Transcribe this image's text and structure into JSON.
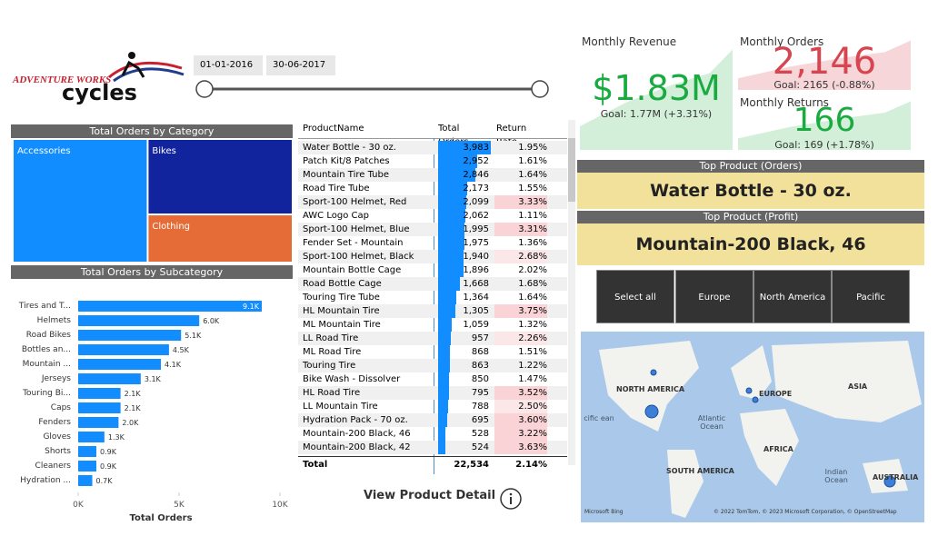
{
  "logo": {
    "line1": "ADVENTURE WORKS",
    "line2": "cycles"
  },
  "date_range": {
    "start": "01-01-2016",
    "end": "30-06-2017"
  },
  "category_treemap": {
    "title": "Total Orders by Category",
    "categories": [
      "Accessories",
      "Bikes",
      "Clothing"
    ],
    "values": [
      16000,
      10500,
      6700
    ],
    "colors": [
      "#118dff",
      "#12239e",
      "#e66c37"
    ]
  },
  "subcategory_chart": {
    "type": "bar",
    "title": "Total Orders by Subcategory",
    "x_label": "Total Orders",
    "color": "#118dff",
    "categories": [
      "Tires and T...",
      "Helmets",
      "Road Bikes",
      "Bottles an...",
      "Mountain ...",
      "Jerseys",
      "Touring Bi...",
      "Caps",
      "Fenders",
      "Gloves",
      "Shorts",
      "Cleaners",
      "Hydration ..."
    ],
    "values": [
      9100,
      6000,
      5100,
      4500,
      4100,
      3100,
      2100,
      2100,
      2000,
      1300,
      900,
      900,
      700
    ],
    "value_labels": [
      "9.1K",
      "6.0K",
      "5.1K",
      "4.5K",
      "4.1K",
      "3.1K",
      "2.1K",
      "2.1K",
      "2.0K",
      "1.3K",
      "0.9K",
      "0.9K",
      "0.7K"
    ],
    "xlim": [
      0,
      10000
    ],
    "xticks": [
      {
        "value": 0,
        "label": "0K"
      },
      {
        "value": 5000,
        "label": "5K"
      },
      {
        "value": 10000,
        "label": "10K"
      }
    ]
  },
  "product_table": {
    "columns": [
      "ProductName",
      "Total Orders",
      "Return Rate"
    ],
    "rows": [
      [
        "Water Bottle - 30 oz.",
        {
          "value": 3983,
          "label": "3,983"
        },
        {
          "value": 1.95,
          "label": "1.95%"
        }
      ],
      [
        "Patch Kit/8 Patches",
        {
          "value": 2952,
          "label": "2,952"
        },
        {
          "value": 1.61,
          "label": "1.61%"
        }
      ],
      [
        "Mountain Tire Tube",
        {
          "value": 2846,
          "label": "2,846"
        },
        {
          "value": 1.64,
          "label": "1.64%"
        }
      ],
      [
        "Road Tire Tube",
        {
          "value": 2173,
          "label": "2,173"
        },
        {
          "value": 1.55,
          "label": "1.55%"
        }
      ],
      [
        "Sport-100 Helmet, Red",
        {
          "value": 2099,
          "label": "2,099"
        },
        {
          "value": 3.33,
          "label": "3.33%"
        }
      ],
      [
        "AWC Logo Cap",
        {
          "value": 2062,
          "label": "2,062"
        },
        {
          "value": 1.11,
          "label": "1.11%"
        }
      ],
      [
        "Sport-100 Helmet, Blue",
        {
          "value": 1995,
          "label": "1,995"
        },
        {
          "value": 3.31,
          "label": "3.31%"
        }
      ],
      [
        "Fender Set - Mountain",
        {
          "value": 1975,
          "label": "1,975"
        },
        {
          "value": 1.36,
          "label": "1.36%"
        }
      ],
      [
        "Sport-100 Helmet, Black",
        {
          "value": 1940,
          "label": "1,940"
        },
        {
          "value": 2.68,
          "label": "2.68%"
        }
      ],
      [
        "Mountain Bottle Cage",
        {
          "value": 1896,
          "label": "1,896"
        },
        {
          "value": 2.02,
          "label": "2.02%"
        }
      ],
      [
        "Road Bottle Cage",
        {
          "value": 1668,
          "label": "1,668"
        },
        {
          "value": 1.68,
          "label": "1.68%"
        }
      ],
      [
        "Touring Tire Tube",
        {
          "value": 1364,
          "label": "1,364"
        },
        {
          "value": 1.64,
          "label": "1.64%"
        }
      ],
      [
        "HL Mountain Tire",
        {
          "value": 1305,
          "label": "1,305"
        },
        {
          "value": 3.75,
          "label": "3.75%"
        }
      ],
      [
        "ML Mountain Tire",
        {
          "value": 1059,
          "label": "1,059"
        },
        {
          "value": 1.32,
          "label": "1.32%"
        }
      ],
      [
        "LL Road Tire",
        {
          "value": 957,
          "label": "957"
        },
        {
          "value": 2.26,
          "label": "2.26%"
        }
      ],
      [
        "ML Road Tire",
        {
          "value": 868,
          "label": "868"
        },
        {
          "value": 1.51,
          "label": "1.51%"
        }
      ],
      [
        "Touring Tire",
        {
          "value": 863,
          "label": "863"
        },
        {
          "value": 1.22,
          "label": "1.22%"
        }
      ],
      [
        "Bike Wash - Dissolver",
        {
          "value": 850,
          "label": "850"
        },
        {
          "value": 1.47,
          "label": "1.47%"
        }
      ],
      [
        "HL Road Tire",
        {
          "value": 795,
          "label": "795"
        },
        {
          "value": 3.52,
          "label": "3.52%"
        }
      ],
      [
        "LL Mountain Tire",
        {
          "value": 788,
          "label": "788"
        },
        {
          "value": 2.5,
          "label": "2.50%"
        }
      ],
      [
        "Hydration Pack - 70 oz.",
        {
          "value": 695,
          "label": "695"
        },
        {
          "value": 3.6,
          "label": "3.60%"
        }
      ],
      [
        "Mountain-200 Black, 46",
        {
          "value": 528,
          "label": "528"
        },
        {
          "value": 3.22,
          "label": "3.22%"
        }
      ],
      [
        "Mountain-200 Black, 42",
        {
          "value": 524,
          "label": "524"
        },
        {
          "value": 3.63,
          "label": "3.63%"
        }
      ]
    ],
    "total": [
      "Total",
      "22,534",
      "2.14%"
    ]
  },
  "view_detail": "View Product Detail",
  "kpis": [
    {
      "title": "Monthly Revenue",
      "value": "$1.83M",
      "goal": "Goal: 1.77M (+3.31%)",
      "color": "#1aab40"
    },
    {
      "title": "Monthly Orders",
      "value": "2,146",
      "goal": "Goal: 2165 (-0.88%)",
      "color": "#d64550"
    },
    {
      "title": "Monthly Returns",
      "value": "166",
      "goal": "Goal: 169 (+1.78%)",
      "color": "#1aab40"
    }
  ],
  "top_products": [
    {
      "title": "Top Product (Orders)",
      "value": "Water Bottle - 30 oz."
    },
    {
      "title": "Top Product (Profit)",
      "value": "Mountain-200 Black, 46"
    }
  ],
  "region_buttons": [
    "Select all",
    "Europe",
    "North America",
    "Pacific"
  ],
  "map": {
    "labels": [
      "NORTH AMERICA",
      "EUROPE",
      "ASIA",
      "Atlantic Ocean",
      "AFRICA",
      "SOUTH AMERICA",
      "Indian Ocean",
      "AUSTRALIA",
      "cific ean"
    ],
    "attribution": "© 2022 TomTom, © 2023 Microsoft Corporation, © OpenStreetMap",
    "provider": "Microsoft Bing"
  }
}
